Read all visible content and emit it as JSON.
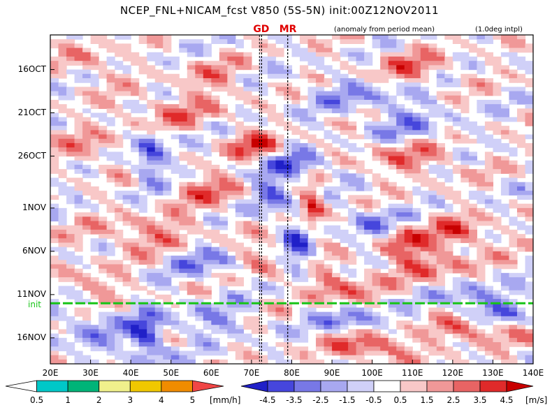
{
  "header": {
    "title": "NCEP_FNL+NICAM_fcst V850 (5S-5N) init:00Z12NOV2011",
    "subtitle": "(anomaly from period mean)",
    "interp": "(1.0deg intpl)"
  },
  "markers": [
    {
      "label": "GD",
      "lon": 72.5
    },
    {
      "label": "MR",
      "lon": 79
    }
  ],
  "init_label": "init",
  "chart_data": {
    "type": "heatmap",
    "title": "NCEP_FNL+NICAM_fcst V850 (5S-5N) init:00Z12NOV2011",
    "subtitle": "(anomaly from period mean)",
    "xlabel": "",
    "ylabel": "",
    "x_range": [
      "20E",
      "140E"
    ],
    "x_ticks": [
      "20E",
      "30E",
      "40E",
      "50E",
      "60E",
      "70E",
      "80E",
      "90E",
      "100E",
      "110E",
      "120E",
      "130E",
      "140E"
    ],
    "x_tick_lons": [
      20,
      30,
      40,
      50,
      60,
      70,
      80,
      90,
      100,
      110,
      120,
      130,
      140
    ],
    "y_ticks": [
      "16OCT",
      "21OCT",
      "26OCT",
      "1NOV",
      "6NOV",
      "11NOV",
      "16NOV"
    ],
    "y_tick_day": [
      5,
      10,
      15,
      21,
      26,
      31,
      36
    ],
    "init_day": 32,
    "wind_colorbar": {
      "unit": "[m/s]",
      "levels": [
        "-4.5",
        "-3.5",
        "-2.5",
        "-1.5",
        "-0.5",
        "0.5",
        "1.5",
        "2.5",
        "3.5",
        "4.5"
      ],
      "colors": [
        "#2020c8",
        "#4646dc",
        "#7878e6",
        "#a8a8f0",
        "#d0d0f8",
        "#ffffff",
        "#f8c8c8",
        "#f09898",
        "#e86464",
        "#e02a2a",
        "#c80000"
      ]
    },
    "precip_colorbar": {
      "unit": "[mm/h]",
      "levels": [
        "0.5",
        "1",
        "2",
        "3",
        "4",
        "5"
      ],
      "colors": [
        "#ffffff",
        "#00c8c8",
        "#00b478",
        "#f0f08c",
        "#f0c800",
        "#f08c00",
        "#f04646"
      ]
    },
    "blobs": [
      {
        "lon": 45,
        "day": 15,
        "rl": 4,
        "rd": 3,
        "v": -4
      },
      {
        "lon": 72,
        "day": 14,
        "rl": 6,
        "rd": 1.5,
        "v": 4
      },
      {
        "lon": 82,
        "day": 16,
        "rl": 6,
        "rd": 1.5,
        "v": -4
      },
      {
        "lon": 85,
        "day": 21,
        "rl": 3,
        "rd": 3,
        "v": 4.5
      },
      {
        "lon": 75,
        "day": 19,
        "rl": 5,
        "rd": 3,
        "v": -3.5
      },
      {
        "lon": 60,
        "day": 19,
        "rl": 10,
        "rd": 2,
        "v": 2.5
      },
      {
        "lon": 110,
        "day": 15,
        "rl": 12,
        "rd": 2,
        "v": 2.5
      },
      {
        "lon": 50,
        "day": 10,
        "rl": 14,
        "rd": 2,
        "v": 2
      },
      {
        "lon": 30,
        "day": 14,
        "rl": 8,
        "rd": 2,
        "v": 2
      },
      {
        "lon": 100,
        "day": 8,
        "rl": 15,
        "rd": 2,
        "v": -2
      },
      {
        "lon": 60,
        "day": 6,
        "rl": 8,
        "rd": 2,
        "v": 2
      },
      {
        "lon": 110,
        "day": 5,
        "rl": 10,
        "rd": 2,
        "v": 2.5
      },
      {
        "lon": 30,
        "day": 4,
        "rl": 6,
        "rd": 2,
        "v": 2
      },
      {
        "lon": 110,
        "day": 12,
        "rl": 10,
        "rd": 2,
        "v": -2
      },
      {
        "lon": 45,
        "day": 24,
        "rl": 14,
        "rd": 2,
        "v": 2.5
      },
      {
        "lon": 60,
        "day": 27,
        "rl": 10,
        "rd": 2,
        "v": -2.5
      },
      {
        "lon": 82,
        "day": 26,
        "rl": 4,
        "rd": 4,
        "v": -3.5
      },
      {
        "lon": 72,
        "day": 27,
        "rl": 6,
        "rd": 2,
        "v": 3
      },
      {
        "lon": 90,
        "day": 30,
        "rl": 8,
        "rd": 2,
        "v": 3.5
      },
      {
        "lon": 100,
        "day": 23,
        "rl": 6,
        "rd": 2,
        "v": -3
      },
      {
        "lon": 107,
        "day": 25,
        "rl": 6,
        "rd": 2,
        "v": 3.5
      },
      {
        "lon": 122,
        "day": 24,
        "rl": 8,
        "rd": 2,
        "v": 3
      },
      {
        "lon": 115,
        "day": 28,
        "rl": 10,
        "rd": 2,
        "v": 2.5
      },
      {
        "lon": 125,
        "day": 31,
        "rl": 10,
        "rd": 2,
        "v": -2
      },
      {
        "lon": 30,
        "day": 30,
        "rl": 8,
        "rd": 2,
        "v": 2
      },
      {
        "lon": 44,
        "day": 36,
        "rl": 4,
        "rd": 3,
        "v": -4.5
      },
      {
        "lon": 30,
        "day": 35,
        "rl": 8,
        "rd": 3,
        "v": -2
      },
      {
        "lon": 60,
        "day": 34,
        "rl": 10,
        "rd": 2,
        "v": -2
      },
      {
        "lon": 100,
        "day": 37,
        "rl": 10,
        "rd": 1.5,
        "v": 4
      },
      {
        "lon": 125,
        "day": 35,
        "rl": 10,
        "rd": 1.5,
        "v": 3.5
      },
      {
        "lon": 95,
        "day": 34,
        "rl": 8,
        "rd": 1.5,
        "v": -3
      },
      {
        "lon": 130,
        "day": 33,
        "rl": 8,
        "rd": 1.5,
        "v": -2.5
      }
    ]
  }
}
